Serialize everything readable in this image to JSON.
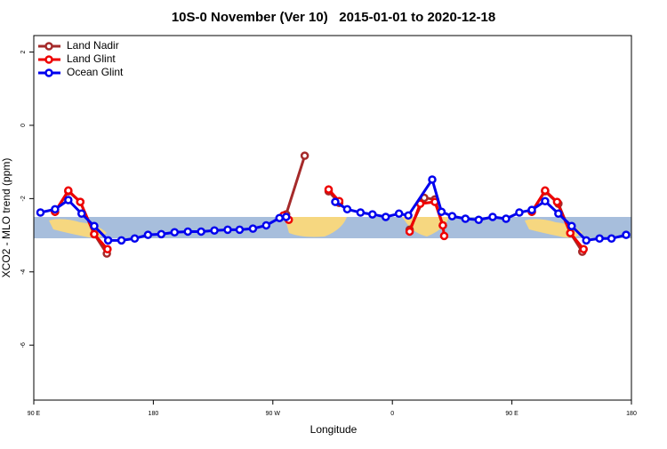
{
  "chart_data": {
    "type": "line",
    "title": "10S-0 November (Ver 10)   2015-01-01 to 2020-12-18",
    "x_label": "Longitude",
    "y_label": "XCO2 - MLO trend (ppm)",
    "xlim": [
      90,
      540
    ],
    "xticks": [
      {
        "value": 90,
        "label": "90 E"
      },
      180,
      {
        "value": 270,
        "label": "90 W"
      },
      {
        "value": 360,
        "label": "0"
      },
      {
        "value": 450,
        "label": "90 E"
      },
      {
        "value": 540,
        "label": "180"
      }
    ],
    "ylim": [
      -7.5,
      2.45
    ],
    "yticks": [
      2,
      0,
      -2,
      -4,
      -6
    ],
    "legend": "top-left",
    "series": [
      {
        "name": "Land Nadir",
        "color": "#a52a2a",
        "x": [
          106,
          116,
          125,
          135.5,
          145,
          null,
          280,
          294,
          null,
          312,
          320,
          null,
          373,
          384,
          392,
          398,
          null,
          465,
          475,
          485,
          494,
          503
        ],
        "values": [
          -2.36,
          -1.8,
          -2.09,
          -2.97,
          -3.5,
          null,
          -2.43,
          -0.83,
          null,
          -1.8,
          -2.12,
          null,
          -2.85,
          -1.98,
          -2.02,
          -2.73,
          null,
          -2.36,
          -1.8,
          -2.14,
          -2.94,
          -3.45
        ]
      },
      {
        "name": "Land Glint",
        "color": "#ee0000",
        "x": [
          106,
          116,
          125,
          135.5,
          145.5,
          null,
          278,
          282,
          null,
          312,
          320,
          null,
          373,
          381,
          392,
          398,
          399,
          null,
          465,
          475,
          484,
          494,
          504
        ],
        "values": [
          -2.36,
          -1.78,
          -2.09,
          -2.97,
          -3.38,
          null,
          -2.46,
          -2.58,
          null,
          -1.75,
          -2.07,
          null,
          -2.9,
          -2.14,
          -2.09,
          -2.73,
          -3.02,
          null,
          -2.36,
          -1.78,
          -2.09,
          -2.94,
          -3.38
        ]
      },
      {
        "name": "Ocean Glint",
        "color": "#0000ee",
        "x": [
          95,
          106,
          116,
          126,
          135.5,
          146,
          156,
          166,
          176,
          186,
          196,
          206,
          216,
          226,
          236,
          245,
          255,
          265,
          275,
          280,
          null,
          317,
          326,
          336,
          345,
          355,
          365,
          372,
          390,
          397,
          405,
          415,
          425,
          435.5,
          445.6,
          455.6,
          465,
          475,
          485,
          495,
          506,
          516,
          525,
          536
        ],
        "values": [
          -2.38,
          -2.29,
          -2.04,
          -2.41,
          -2.75,
          -3.14,
          -3.14,
          -3.09,
          -2.99,
          -2.97,
          -2.92,
          -2.9,
          -2.9,
          -2.87,
          -2.85,
          -2.85,
          -2.82,
          -2.73,
          -2.53,
          -2.5,
          null,
          -2.09,
          -2.29,
          -2.38,
          -2.43,
          -2.5,
          -2.41,
          -2.46,
          -1.48,
          -2.36,
          -2.48,
          -2.55,
          -2.58,
          -2.5,
          -2.55,
          -2.38,
          -2.31,
          -2.07,
          -2.41,
          -2.75,
          -3.14,
          -3.09,
          -3.09,
          -2.99
        ]
      }
    ]
  }
}
